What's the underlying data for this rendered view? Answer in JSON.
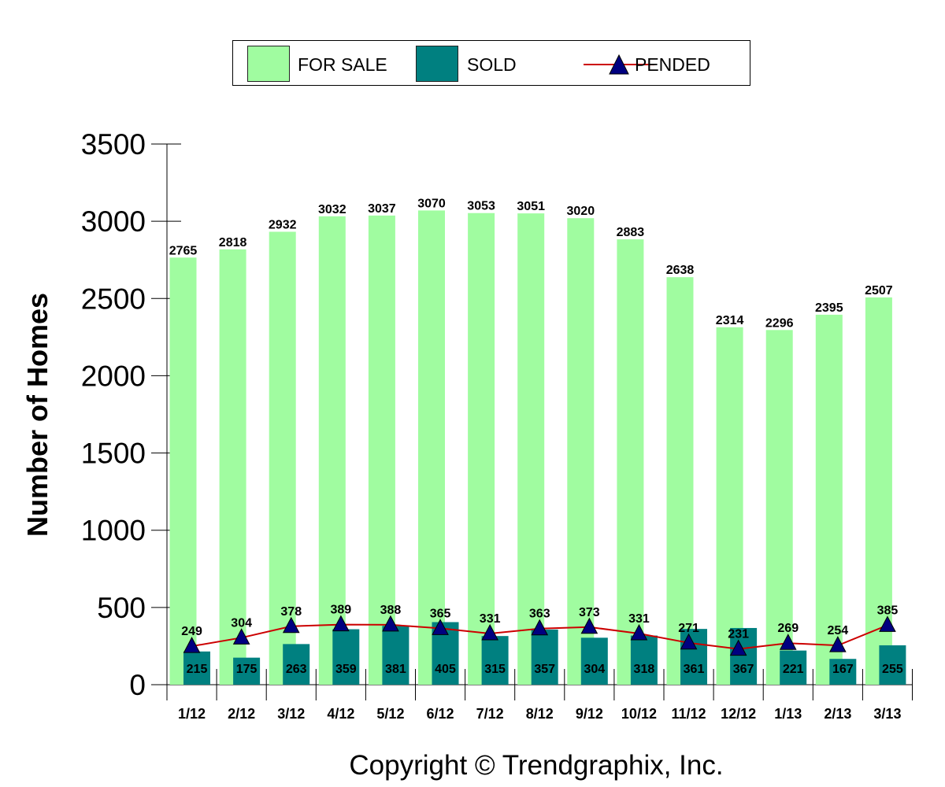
{
  "legend": {
    "for_sale": "FOR SALE",
    "sold": "SOLD",
    "pended": "PENDED"
  },
  "colors": {
    "for_sale": "#a0fca0",
    "sold": "#008080",
    "pended_line": "#cc0000",
    "pended_marker": "#000080"
  },
  "copyright": "Copyright © Trendgraphix, Inc.",
  "chart_data": {
    "type": "bar",
    "title": "",
    "xlabel": "",
    "ylabel": "Number of Homes",
    "ylim": [
      0,
      3500
    ],
    "yticks": [
      0,
      500,
      1000,
      1500,
      2000,
      2500,
      3000,
      3500
    ],
    "categories": [
      "1/12",
      "2/12",
      "3/12",
      "4/12",
      "5/12",
      "6/12",
      "7/12",
      "8/12",
      "9/12",
      "10/12",
      "11/12",
      "12/12",
      "1/13",
      "2/13",
      "3/13"
    ],
    "series": [
      {
        "name": "FOR SALE",
        "kind": "bar",
        "values": [
          2765,
          2818,
          2932,
          3032,
          3037,
          3070,
          3053,
          3051,
          3020,
          2883,
          2638,
          2314,
          2296,
          2395,
          2507
        ]
      },
      {
        "name": "SOLD",
        "kind": "bar",
        "values": [
          215,
          175,
          263,
          359,
          381,
          405,
          315,
          357,
          304,
          318,
          361,
          367,
          221,
          167,
          255
        ]
      },
      {
        "name": "PENDED",
        "kind": "line",
        "values": [
          249,
          304,
          378,
          389,
          388,
          365,
          331,
          363,
          373,
          331,
          271,
          231,
          269,
          254,
          385
        ]
      }
    ],
    "legend_position": "top-center"
  }
}
